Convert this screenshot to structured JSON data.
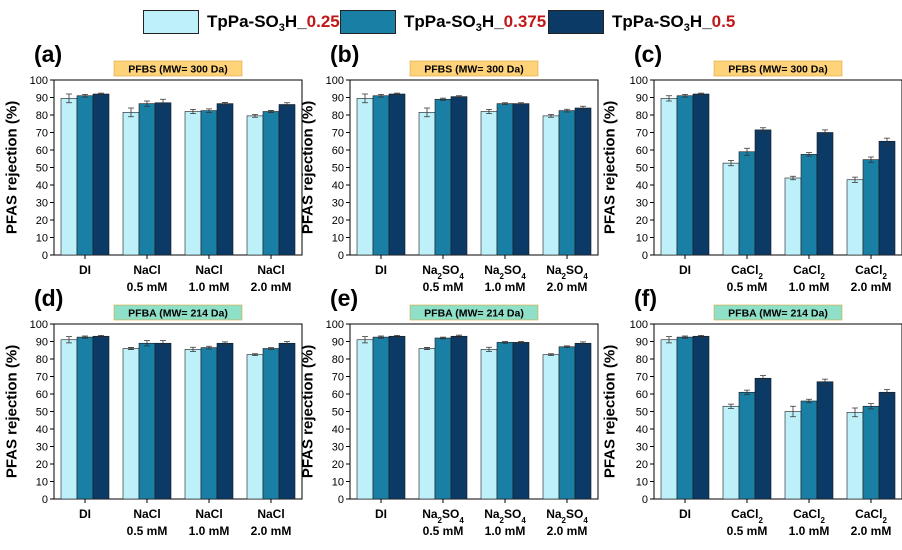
{
  "legend": {
    "series": [
      {
        "prefix": "TpPa-SO",
        "sub": "3",
        "mid": "H_",
        "value": "0.25",
        "color": "#bdf0f8"
      },
      {
        "prefix": "TpPa-SO",
        "sub": "3",
        "mid": "H_",
        "value": "0.375",
        "color": "#1a7fa4"
      },
      {
        "prefix": "TpPa-SO",
        "sub": "3",
        "mid": "H_",
        "value": "0.5",
        "color": "#0b3a66"
      }
    ]
  },
  "colors": {
    "label_box_pfbs": "#ffd37a",
    "label_box_pfba": "#8fe0c8",
    "legend_value": "#c01818"
  },
  "chart_data": [
    {
      "type": "bar",
      "panel_label": "(a)",
      "title": "PFBS (MW= 300 Da)",
      "ylabel": "PFAS rejection (%)",
      "ylim": [
        0,
        100
      ],
      "yticks": [
        0,
        10,
        20,
        30,
        40,
        50,
        60,
        70,
        80,
        90,
        100
      ],
      "categories": [
        {
          "lines": [
            {
              "parts": [
                {
                  "t": "DI"
                }
              ]
            }
          ]
        },
        {
          "lines": [
            {
              "parts": [
                {
                  "t": "NaCl"
                }
              ]
            },
            {
              "parts": [
                {
                  "t": "0.5 mM"
                }
              ]
            }
          ]
        },
        {
          "lines": [
            {
              "parts": [
                {
                  "t": "NaCl"
                }
              ]
            },
            {
              "parts": [
                {
                  "t": "1.0 mM"
                }
              ]
            }
          ]
        },
        {
          "lines": [
            {
              "parts": [
                {
                  "t": "NaCl"
                }
              ]
            },
            {
              "parts": [
                {
                  "t": "2.0 mM"
                }
              ]
            }
          ]
        }
      ],
      "series": [
        {
          "values": [
            89.5,
            81.5,
            82.0,
            79.5
          ],
          "errors": [
            2.5,
            2.5,
            1.2,
            0.8
          ]
        },
        {
          "values": [
            91.0,
            86.5,
            82.5,
            82.0
          ],
          "errors": [
            0.8,
            1.5,
            1.0,
            0.6
          ]
        },
        {
          "values": [
            92.0,
            87.0,
            86.5,
            86.0
          ],
          "errors": [
            0.5,
            2.0,
            0.6,
            1.0
          ]
        }
      ]
    },
    {
      "type": "bar",
      "panel_label": "(b)",
      "title": "PFBS (MW= 300 Da)",
      "ylabel": "PFAS rejection (%)",
      "ylim": [
        0,
        100
      ],
      "yticks": [
        0,
        10,
        20,
        30,
        40,
        50,
        60,
        70,
        80,
        90,
        100
      ],
      "categories": [
        {
          "lines": [
            {
              "parts": [
                {
                  "t": "DI"
                }
              ]
            }
          ]
        },
        {
          "lines": [
            {
              "parts": [
                {
                  "t": "Na"
                },
                {
                  "t": "2",
                  "s": "sub"
                },
                {
                  "t": "SO"
                },
                {
                  "t": "4",
                  "s": "sub"
                }
              ]
            },
            {
              "parts": [
                {
                  "t": "0.5 mM"
                }
              ]
            }
          ]
        },
        {
          "lines": [
            {
              "parts": [
                {
                  "t": "Na"
                },
                {
                  "t": "2",
                  "s": "sub"
                },
                {
                  "t": "SO"
                },
                {
                  "t": "4",
                  "s": "sub"
                }
              ]
            },
            {
              "parts": [
                {
                  "t": "1.0 mM"
                }
              ]
            }
          ]
        },
        {
          "lines": [
            {
              "parts": [
                {
                  "t": "Na"
                },
                {
                  "t": "2",
                  "s": "sub"
                },
                {
                  "t": "SO"
                },
                {
                  "t": "4",
                  "s": "sub"
                }
              ]
            },
            {
              "parts": [
                {
                  "t": "2.0 mM"
                }
              ]
            }
          ]
        }
      ],
      "series": [
        {
          "values": [
            89.5,
            81.5,
            82.0,
            79.5
          ],
          "errors": [
            2.5,
            2.5,
            1.2,
            0.8
          ]
        },
        {
          "values": [
            91.0,
            89.0,
            86.5,
            82.5
          ],
          "errors": [
            0.8,
            0.6,
            0.5,
            0.8
          ]
        },
        {
          "values": [
            92.0,
            90.5,
            86.5,
            84.0
          ],
          "errors": [
            0.5,
            0.5,
            0.5,
            1.0
          ]
        }
      ]
    },
    {
      "type": "bar",
      "panel_label": "(c)",
      "title": "PFBS (MW= 300 Da)",
      "ylabel": "PFAS rejection (%)",
      "ylim": [
        0,
        100
      ],
      "yticks": [
        0,
        10,
        20,
        30,
        40,
        50,
        60,
        70,
        80,
        90,
        100
      ],
      "categories": [
        {
          "lines": [
            {
              "parts": [
                {
                  "t": "DI"
                }
              ]
            }
          ]
        },
        {
          "lines": [
            {
              "parts": [
                {
                  "t": "CaCl"
                },
                {
                  "t": "2",
                  "s": "sub"
                }
              ]
            },
            {
              "parts": [
                {
                  "t": "0.5 mM"
                }
              ]
            }
          ]
        },
        {
          "lines": [
            {
              "parts": [
                {
                  "t": "CaCl"
                },
                {
                  "t": "2",
                  "s": "sub"
                }
              ]
            },
            {
              "parts": [
                {
                  "t": "1.0 mM"
                }
              ]
            }
          ]
        },
        {
          "lines": [
            {
              "parts": [
                {
                  "t": "CaCl"
                },
                {
                  "t": "2",
                  "s": "sub"
                }
              ]
            },
            {
              "parts": [
                {
                  "t": "2.0 mM"
                }
              ]
            }
          ]
        }
      ],
      "series": [
        {
          "values": [
            89.5,
            52.5,
            44.0,
            43.0
          ],
          "errors": [
            1.5,
            1.5,
            1.0,
            1.5
          ]
        },
        {
          "values": [
            91.0,
            59.0,
            57.5,
            54.5
          ],
          "errors": [
            0.8,
            2.0,
            1.0,
            1.5
          ]
        },
        {
          "values": [
            92.0,
            71.5,
            70.0,
            65.0
          ],
          "errors": [
            0.5,
            1.2,
            1.5,
            1.8
          ]
        }
      ]
    },
    {
      "type": "bar",
      "panel_label": "(d)",
      "title": "PFBA (MW= 214 Da)",
      "ylabel": "PFAS rejection (%)",
      "ylim": [
        0,
        100
      ],
      "yticks": [
        0,
        10,
        20,
        30,
        40,
        50,
        60,
        70,
        80,
        90,
        100
      ],
      "categories": [
        {
          "lines": [
            {
              "parts": [
                {
                  "t": "DI"
                }
              ]
            }
          ]
        },
        {
          "lines": [
            {
              "parts": [
                {
                  "t": "NaCl"
                }
              ]
            },
            {
              "parts": [
                {
                  "t": "0.5 mM"
                }
              ]
            }
          ]
        },
        {
          "lines": [
            {
              "parts": [
                {
                  "t": "NaCl"
                }
              ]
            },
            {
              "parts": [
                {
                  "t": "1.0 mM"
                }
              ]
            }
          ]
        },
        {
          "lines": [
            {
              "parts": [
                {
                  "t": "NaCl"
                }
              ]
            },
            {
              "parts": [
                {
                  "t": "2.0 mM"
                }
              ]
            }
          ]
        }
      ],
      "series": [
        {
          "values": [
            91.0,
            86.0,
            85.5,
            82.5
          ],
          "errors": [
            1.8,
            0.6,
            1.2,
            0.5
          ]
        },
        {
          "values": [
            92.5,
            89.0,
            86.5,
            86.0
          ],
          "errors": [
            0.6,
            1.5,
            0.8,
            0.5
          ]
        },
        {
          "values": [
            93.0,
            89.0,
            89.0,
            89.0
          ],
          "errors": [
            0.5,
            1.5,
            0.8,
            1.0
          ]
        }
      ]
    },
    {
      "type": "bar",
      "panel_label": "(e)",
      "title": "PFBA (MW= 214 Da)",
      "ylabel": "PFAS rejection (%)",
      "ylim": [
        0,
        100
      ],
      "yticks": [
        0,
        10,
        20,
        30,
        40,
        50,
        60,
        70,
        80,
        90,
        100
      ],
      "categories": [
        {
          "lines": [
            {
              "parts": [
                {
                  "t": "DI"
                }
              ]
            }
          ]
        },
        {
          "lines": [
            {
              "parts": [
                {
                  "t": "Na"
                },
                {
                  "t": "2",
                  "s": "sub"
                },
                {
                  "t": "SO"
                },
                {
                  "t": "4",
                  "s": "sub"
                }
              ]
            },
            {
              "parts": [
                {
                  "t": "0.5 mM"
                }
              ]
            }
          ]
        },
        {
          "lines": [
            {
              "parts": [
                {
                  "t": "Na"
                },
                {
                  "t": "2",
                  "s": "sub"
                },
                {
                  "t": "SO"
                },
                {
                  "t": "4",
                  "s": "sub"
                }
              ]
            },
            {
              "parts": [
                {
                  "t": "1.0 mM"
                }
              ]
            }
          ]
        },
        {
          "lines": [
            {
              "parts": [
                {
                  "t": "Na"
                },
                {
                  "t": "2",
                  "s": "sub"
                },
                {
                  "t": "SO"
                },
                {
                  "t": "4",
                  "s": "sub"
                }
              ]
            },
            {
              "parts": [
                {
                  "t": "2.0 mM"
                }
              ]
            }
          ]
        }
      ],
      "series": [
        {
          "values": [
            91.0,
            86.0,
            85.5,
            82.5
          ],
          "errors": [
            1.8,
            0.6,
            1.2,
            0.5
          ]
        },
        {
          "values": [
            92.5,
            92.0,
            89.5,
            87.0
          ],
          "errors": [
            0.6,
            0.5,
            0.5,
            0.5
          ]
        },
        {
          "values": [
            93.0,
            93.0,
            89.5,
            89.0
          ],
          "errors": [
            0.5,
            0.6,
            0.5,
            0.8
          ]
        }
      ]
    },
    {
      "type": "bar",
      "panel_label": "(f)",
      "title": "PFBA (MW= 214 Da)",
      "ylabel": "PFAS rejection (%)",
      "ylim": [
        0,
        100
      ],
      "yticks": [
        0,
        10,
        20,
        30,
        40,
        50,
        60,
        70,
        80,
        90,
        100
      ],
      "categories": [
        {
          "lines": [
            {
              "parts": [
                {
                  "t": "DI"
                }
              ]
            }
          ]
        },
        {
          "lines": [
            {
              "parts": [
                {
                  "t": "CaCl"
                },
                {
                  "t": "2",
                  "s": "sub"
                }
              ]
            },
            {
              "parts": [
                {
                  "t": "0.5 mM"
                }
              ]
            }
          ]
        },
        {
          "lines": [
            {
              "parts": [
                {
                  "t": "CaCl"
                },
                {
                  "t": "2",
                  "s": "sub"
                }
              ]
            },
            {
              "parts": [
                {
                  "t": "1.0 mM"
                }
              ]
            }
          ]
        },
        {
          "lines": [
            {
              "parts": [
                {
                  "t": "CaCl"
                },
                {
                  "t": "2",
                  "s": "sub"
                }
              ]
            },
            {
              "parts": [
                {
                  "t": "2.0 mM"
                }
              ]
            }
          ]
        }
      ],
      "series": [
        {
          "values": [
            91.0,
            53.0,
            50.0,
            49.5
          ],
          "errors": [
            1.8,
            1.2,
            3.0,
            2.5
          ]
        },
        {
          "values": [
            92.5,
            61.0,
            56.0,
            53.0
          ],
          "errors": [
            0.6,
            1.2,
            1.0,
            1.5
          ]
        },
        {
          "values": [
            93.0,
            69.0,
            67.0,
            61.0
          ],
          "errors": [
            0.5,
            1.5,
            1.5,
            1.5
          ]
        }
      ]
    }
  ]
}
